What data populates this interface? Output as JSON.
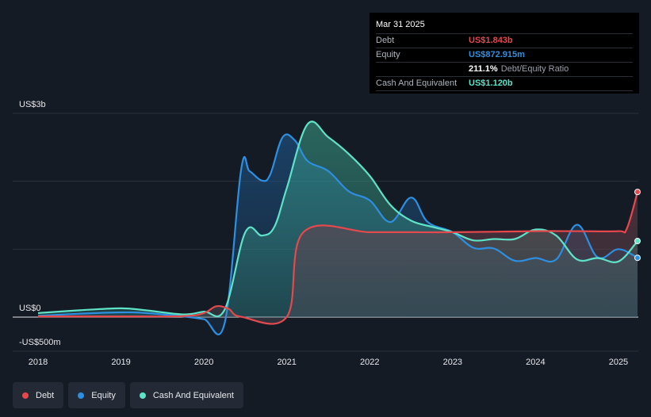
{
  "tooltip": {
    "date": "Mar 31 2025",
    "debt_label": "Debt",
    "debt_value": "US$1.843b",
    "equity_label": "Equity",
    "equity_value": "US$872.915m",
    "ratio_value": "211.1%",
    "ratio_label": "Debt/Equity Ratio",
    "cash_label": "Cash And Equivalent",
    "cash_value": "US$1.120b"
  },
  "legend": [
    {
      "label": "Debt",
      "color": "#e5484d"
    },
    {
      "label": "Equity",
      "color": "#2e8fe0"
    },
    {
      "label": "Cash And Equivalent",
      "color": "#5ee2c8"
    }
  ],
  "chart_data": {
    "type": "area",
    "y_tick_labels": [
      "US$3b",
      "US$0",
      "-US$500m"
    ],
    "x_tick_labels": [
      "2018",
      "2019",
      "2020",
      "2021",
      "2022",
      "2023",
      "2024",
      "2025"
    ],
    "xlim": [
      2018.0,
      2025.23
    ],
    "ylim": [
      -500,
      3000
    ],
    "units": "US$m",
    "series": [
      {
        "name": "Debt",
        "color": "#e5484d",
        "x": [
          2018.0,
          2019.0,
          2019.75,
          2020.0,
          2020.15,
          2020.3,
          2020.45,
          2021.0,
          2021.2,
          2022.0,
          2022.5,
          2023.0,
          2024.0,
          2024.5,
          2025.0,
          2025.1,
          2025.23
        ],
        "y": [
          10,
          10,
          15,
          60,
          160,
          120,
          5,
          5,
          1250,
          1250,
          1250,
          1250,
          1265,
          1265,
          1265,
          1300,
          1843
        ]
      },
      {
        "name": "Equity",
        "color": "#2e8fe0",
        "x": [
          2018.0,
          2018.5,
          2019.0,
          2019.3,
          2019.75,
          2020.0,
          2020.25,
          2020.45,
          2020.55,
          2020.7,
          2020.8,
          2020.95,
          2021.1,
          2021.25,
          2021.5,
          2021.75,
          2022.0,
          2022.25,
          2022.5,
          2022.7,
          2023.0,
          2023.25,
          2023.5,
          2023.75,
          2024.0,
          2024.25,
          2024.5,
          2024.75,
          2025.0,
          2025.23
        ],
        "y": [
          20,
          50,
          70,
          60,
          10,
          -30,
          -90,
          2180,
          2150,
          2010,
          2100,
          2650,
          2600,
          2300,
          2150,
          1850,
          1720,
          1400,
          1760,
          1400,
          1250,
          1020,
          1010,
          830,
          870,
          850,
          1360,
          880,
          1000,
          873
        ]
      },
      {
        "name": "Cash And Equivalent",
        "color": "#5ee2c8",
        "x": [
          2018.0,
          2018.5,
          2019.0,
          2019.3,
          2019.75,
          2020.0,
          2020.25,
          2020.5,
          2020.7,
          2020.85,
          2021.0,
          2021.25,
          2021.5,
          2021.75,
          2022.0,
          2022.25,
          2022.5,
          2022.75,
          2023.0,
          2023.25,
          2023.5,
          2023.75,
          2024.0,
          2024.25,
          2024.5,
          2024.75,
          2025.0,
          2025.23
        ],
        "y": [
          60,
          100,
          130,
          100,
          40,
          80,
          110,
          1250,
          1200,
          1330,
          1900,
          2840,
          2650,
          2400,
          2080,
          1650,
          1420,
          1330,
          1250,
          1130,
          1150,
          1150,
          1290,
          1200,
          850,
          870,
          820,
          1120
        ]
      }
    ],
    "grid": true
  }
}
